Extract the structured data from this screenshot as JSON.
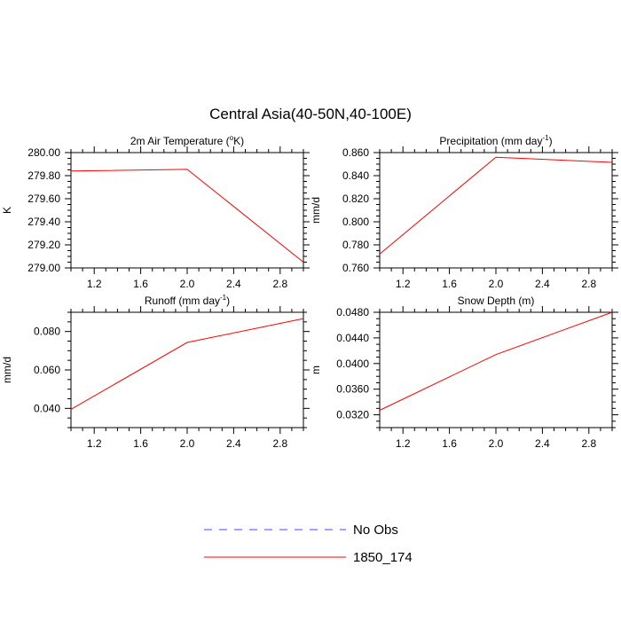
{
  "title": "Central Asia(40-50N,40-100E)",
  "colors": {
    "series_line": "#ff0000",
    "obs_line": "#4444ff",
    "axis": "#000000"
  },
  "chart_data": [
    {
      "type": "line",
      "title_main": "2m Air Temperature (",
      "title_sup": "o",
      "title_tail": "K)",
      "ylabel": "K",
      "xlim": [
        1.0,
        3.0
      ],
      "ylim": [
        279.0,
        280.0
      ],
      "xticks": [
        1.2,
        1.6,
        2.0,
        2.4,
        2.8
      ],
      "xtick_labels": [
        "1.2",
        "1.6",
        "2.0",
        "2.4",
        "2.8"
      ],
      "yticks": [
        279.0,
        279.2,
        279.4,
        279.6,
        279.8,
        280.0
      ],
      "ytick_labels": [
        "279.00",
        "279.20",
        "279.40",
        "279.60",
        "279.80",
        "280.00"
      ],
      "series": [
        {
          "name": "1850_174",
          "x": [
            1,
            2,
            3
          ],
          "values": [
            279.84,
            279.855,
            279.05
          ]
        }
      ]
    },
    {
      "type": "line",
      "title_main": "Precipitation (mm day",
      "title_sup": "-1",
      "title_tail": ")",
      "ylabel": "mm/d",
      "xlim": [
        1.0,
        3.0
      ],
      "ylim": [
        0.76,
        0.86
      ],
      "xticks": [
        1.2,
        1.6,
        2.0,
        2.4,
        2.8
      ],
      "xtick_labels": [
        "1.2",
        "1.6",
        "2.0",
        "2.4",
        "2.8"
      ],
      "yticks": [
        0.76,
        0.78,
        0.8,
        0.82,
        0.84,
        0.86
      ],
      "ytick_labels": [
        "0.760",
        "0.780",
        "0.800",
        "0.820",
        "0.840",
        "0.860"
      ],
      "series": [
        {
          "name": "1850_174",
          "x": [
            1,
            2,
            3
          ],
          "values": [
            0.772,
            0.856,
            0.8515
          ]
        }
      ]
    },
    {
      "type": "line",
      "title_main": "Runoff (mm day",
      "title_sup": "-1",
      "title_tail": ")",
      "ylabel": "mm/d",
      "xlim": [
        1.0,
        3.0
      ],
      "ylim": [
        0.03,
        0.09
      ],
      "xticks": [
        1.2,
        1.6,
        2.0,
        2.4,
        2.8
      ],
      "xtick_labels": [
        "1.2",
        "1.6",
        "2.0",
        "2.4",
        "2.8"
      ],
      "yticks": [
        0.04,
        0.06,
        0.08
      ],
      "ytick_labels": [
        "0.040",
        "0.060",
        "0.080"
      ],
      "series": [
        {
          "name": "1850_174",
          "x": [
            1,
            2,
            3
          ],
          "values": [
            0.0395,
            0.0743,
            0.0867
          ]
        }
      ]
    },
    {
      "type": "line",
      "title_main": "Snow Depth (m)",
      "title_sup": "",
      "title_tail": "",
      "ylabel": "m",
      "xlim": [
        1.0,
        3.0
      ],
      "ylim": [
        0.03,
        0.048
      ],
      "xticks": [
        1.2,
        1.6,
        2.0,
        2.4,
        2.8
      ],
      "xtick_labels": [
        "1.2",
        "1.6",
        "2.0",
        "2.4",
        "2.8"
      ],
      "yticks": [
        0.032,
        0.036,
        0.04,
        0.044,
        0.048
      ],
      "ytick_labels": [
        "0.0320",
        "0.0360",
        "0.0400",
        "0.0440",
        "0.0480"
      ],
      "series": [
        {
          "name": "1850_174",
          "x": [
            1,
            2,
            3
          ],
          "values": [
            0.0327,
            0.0414,
            0.048
          ]
        }
      ]
    }
  ],
  "legend": {
    "placement": "bottom-center",
    "items": [
      {
        "label": "No Obs",
        "style": "dashed"
      },
      {
        "label": "1850_174",
        "style": "solid"
      }
    ]
  }
}
